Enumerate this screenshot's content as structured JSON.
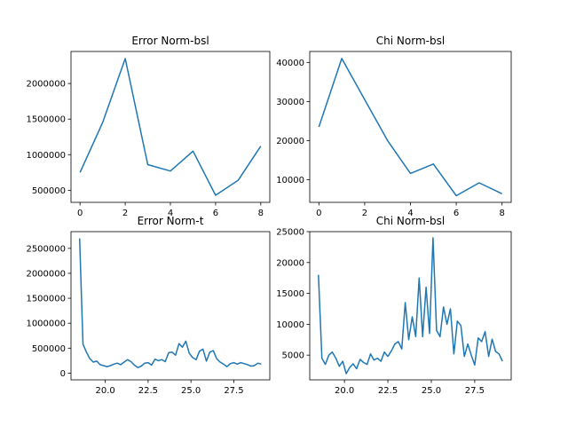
{
  "chart_data": [
    {
      "type": "line",
      "title": "Error Norm-bsl",
      "xlabel": "",
      "ylabel": "",
      "x": [
        0,
        1,
        2,
        3,
        4,
        5,
        6,
        7,
        8
      ],
      "series": [
        {
          "values": [
            750000,
            1450000,
            2350000,
            860000,
            770000,
            1050000,
            430000,
            640000,
            1120000
          ]
        }
      ],
      "xlim": [
        -0.4,
        8.4
      ],
      "ylim": [
        330000,
        2450000
      ],
      "xticks": [
        0,
        2,
        4,
        6,
        8
      ],
      "xtick_labels": [
        "0",
        "2",
        "4",
        "6",
        "8"
      ],
      "yticks": [
        500000,
        1000000,
        1500000,
        2000000
      ],
      "ytick_labels": [
        "500000",
        "1000000",
        "1500000",
        "2000000"
      ],
      "grid": false,
      "line_color": "#1f77b4"
    },
    {
      "type": "line",
      "title": "Chi Norm-bsl",
      "xlabel": "",
      "ylabel": "",
      "x": [
        0,
        1,
        2,
        3,
        4,
        5,
        6,
        7,
        8
      ],
      "series": [
        {
          "values": [
            23500,
            41000,
            30500,
            20000,
            11600,
            14000,
            5900,
            9200,
            6400
          ]
        }
      ],
      "xlim": [
        -0.4,
        8.4
      ],
      "ylim": [
        4200,
        42800
      ],
      "xticks": [
        0,
        2,
        4,
        6,
        8
      ],
      "xtick_labels": [
        "0",
        "2",
        "4",
        "6",
        "8"
      ],
      "yticks": [
        10000,
        20000,
        30000,
        40000
      ],
      "ytick_labels": [
        "10000",
        "20000",
        "30000",
        "40000"
      ],
      "grid": false,
      "line_color": "#1f77b4"
    },
    {
      "type": "line",
      "title": "Error Norm-t",
      "xlabel": "",
      "ylabel": "",
      "x": [
        18.5,
        18.7,
        18.9,
        19.1,
        19.3,
        19.5,
        19.7,
        19.9,
        20.1,
        20.3,
        20.5,
        20.7,
        20.9,
        21.1,
        21.3,
        21.5,
        21.7,
        21.9,
        22.1,
        22.3,
        22.5,
        22.7,
        22.9,
        23.1,
        23.3,
        23.5,
        23.7,
        23.9,
        24.1,
        24.3,
        24.5,
        24.7,
        24.9,
        25.1,
        25.3,
        25.5,
        25.7,
        25.9,
        26.1,
        26.3,
        26.5,
        26.7,
        26.9,
        27.1,
        27.3,
        27.5,
        27.7,
        27.9,
        28.1,
        28.3,
        28.5,
        28.7,
        28.9,
        29.1
      ],
      "series": [
        {
          "values": [
            2700000,
            580000,
            420000,
            290000,
            220000,
            240000,
            170000,
            150000,
            130000,
            150000,
            180000,
            200000,
            170000,
            220000,
            270000,
            230000,
            160000,
            110000,
            140000,
            200000,
            210000,
            160000,
            280000,
            250000,
            270000,
            230000,
            410000,
            420000,
            360000,
            590000,
            520000,
            640000,
            400000,
            310000,
            270000,
            440000,
            480000,
            240000,
            420000,
            450000,
            290000,
            220000,
            180000,
            130000,
            190000,
            210000,
            180000,
            210000,
            190000,
            170000,
            140000,
            150000,
            200000,
            180000
          ]
        }
      ],
      "xlim": [
        18.0,
        29.6
      ],
      "ylim": [
        -135000,
        2835000
      ],
      "xticks": [
        20.0,
        22.5,
        25.0,
        27.5
      ],
      "xtick_labels": [
        "20.0",
        "22.5",
        "25.0",
        "27.5"
      ],
      "yticks": [
        0,
        500000,
        1000000,
        1500000,
        2000000,
        2500000
      ],
      "ytick_labels": [
        "0",
        "500000",
        "1000000",
        "1500000",
        "2000000",
        "2500000"
      ],
      "grid": false,
      "line_color": "#1f77b4"
    },
    {
      "type": "line",
      "title": "Chi Norm-bsl",
      "xlabel": "",
      "ylabel": "",
      "x": [
        18.5,
        18.7,
        18.9,
        19.1,
        19.3,
        19.5,
        19.7,
        19.9,
        20.1,
        20.3,
        20.5,
        20.7,
        20.9,
        21.1,
        21.3,
        21.5,
        21.7,
        21.9,
        22.1,
        22.3,
        22.5,
        22.7,
        22.9,
        23.1,
        23.3,
        23.5,
        23.7,
        23.9,
        24.1,
        24.3,
        24.5,
        24.7,
        24.9,
        25.1,
        25.3,
        25.5,
        25.7,
        25.9,
        26.1,
        26.3,
        26.5,
        26.7,
        26.9,
        27.1,
        27.3,
        27.5,
        27.7,
        27.9,
        28.1,
        28.3,
        28.5,
        28.7,
        28.9,
        29.1
      ],
      "series": [
        {
          "values": [
            18000,
            4500,
            3500,
            5000,
            5500,
            4500,
            3200,
            4000,
            2000,
            3000,
            3600,
            2800,
            4300,
            3800,
            3500,
            5200,
            4200,
            4500,
            4000,
            5500,
            4800,
            5700,
            6800,
            7200,
            6000,
            13500,
            7500,
            11200,
            8000,
            17500,
            8000,
            16000,
            8500,
            24000,
            9000,
            8000,
            12800,
            10000,
            12500,
            5200,
            10500,
            9800,
            4800,
            6800,
            5000,
            3400,
            7800,
            7200,
            8800,
            4800,
            7600,
            5600,
            5200,
            4000
          ]
        }
      ],
      "xlim": [
        18.0,
        29.6
      ],
      "ylim": [
        1000,
        25000
      ],
      "xticks": [
        20.0,
        22.5,
        25.0,
        27.5
      ],
      "xtick_labels": [
        "20.0",
        "22.5",
        "25.0",
        "27.5"
      ],
      "yticks": [
        5000,
        10000,
        15000,
        20000,
        25000
      ],
      "ytick_labels": [
        "5000",
        "10000",
        "15000",
        "20000",
        "25000"
      ],
      "grid": false,
      "line_color": "#1f77b4"
    }
  ]
}
